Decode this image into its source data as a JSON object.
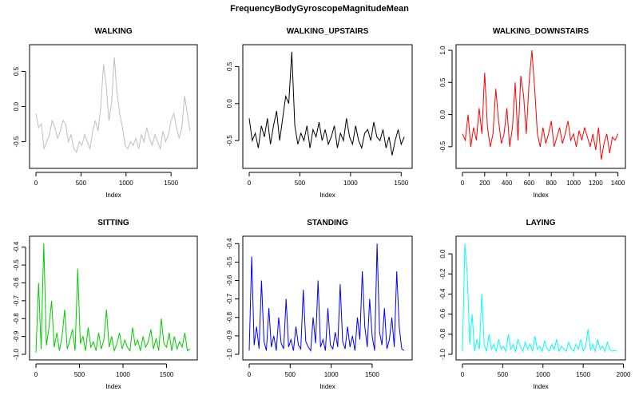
{
  "figure_title": "FrequencyBodyGyroscopeMagnitudeMean",
  "chart_data": [
    {
      "type": "line",
      "title": "WALKING",
      "xlabel": "Index",
      "ylabel": "",
      "color": "#bebebe",
      "n": 1720,
      "xlim": [
        0,
        1720
      ],
      "ylim": [
        -0.8,
        0.8
      ],
      "xticks": [
        0,
        500,
        1000,
        1500
      ],
      "yticks": [
        -0.5,
        0.0,
        0.5
      ],
      "xtick_labels": [
        "0",
        "500",
        "1000",
        "1500"
      ],
      "ytick_labels": [
        "-0.5",
        "0.0",
        "0.5"
      ],
      "x": [
        0,
        30,
        60,
        90,
        120,
        150,
        180,
        210,
        240,
        270,
        300,
        330,
        360,
        390,
        420,
        450,
        480,
        510,
        540,
        570,
        600,
        630,
        660,
        690,
        720,
        750,
        780,
        810,
        840,
        870,
        900,
        930,
        960,
        990,
        1020,
        1050,
        1080,
        1110,
        1140,
        1170,
        1200,
        1230,
        1260,
        1290,
        1320,
        1350,
        1380,
        1410,
        1440,
        1470,
        1500,
        1530,
        1560,
        1590,
        1620,
        1650,
        1680,
        1710
      ],
      "values": [
        -0.1,
        -0.3,
        -0.25,
        -0.6,
        -0.5,
        -0.4,
        -0.2,
        -0.3,
        -0.45,
        -0.35,
        -0.2,
        -0.25,
        -0.5,
        -0.4,
        -0.6,
        -0.65,
        -0.5,
        -0.55,
        -0.4,
        -0.5,
        -0.6,
        -0.35,
        -0.2,
        -0.35,
        0.0,
        0.6,
        0.3,
        -0.2,
        0.05,
        0.7,
        0.2,
        -0.1,
        -0.3,
        -0.55,
        -0.6,
        -0.5,
        -0.55,
        -0.45,
        -0.6,
        -0.4,
        -0.5,
        -0.3,
        -0.45,
        -0.55,
        -0.4,
        -0.5,
        -0.6,
        -0.35,
        -0.5,
        -0.4,
        -0.2,
        -0.1,
        -0.3,
        -0.45,
        -0.3,
        0.15,
        -0.1,
        -0.35
      ]
    },
    {
      "type": "line",
      "title": "WALKING_UPSTAIRS",
      "xlabel": "Index",
      "ylabel": "",
      "color": "#000000",
      "n": 1545,
      "xlim": [
        0,
        1545
      ],
      "ylim": [
        -0.8,
        0.72
      ],
      "xticks": [
        0,
        500,
        1000,
        1500
      ],
      "yticks": [
        -0.5,
        0.0,
        0.5
      ],
      "xtick_labels": [
        "0",
        "500",
        "1000",
        "1500"
      ],
      "ytick_labels": [
        "-0.5",
        "0.0",
        "0.5"
      ],
      "x": [
        0,
        30,
        60,
        90,
        120,
        150,
        180,
        210,
        240,
        270,
        300,
        330,
        360,
        390,
        420,
        450,
        480,
        510,
        540,
        570,
        600,
        630,
        660,
        690,
        720,
        750,
        780,
        810,
        840,
        870,
        900,
        930,
        960,
        990,
        1020,
        1050,
        1080,
        1110,
        1140,
        1170,
        1200,
        1230,
        1260,
        1290,
        1320,
        1350,
        1380,
        1410,
        1440,
        1470,
        1500,
        1530
      ],
      "values": [
        -0.2,
        -0.5,
        -0.4,
        -0.6,
        -0.3,
        -0.45,
        -0.2,
        -0.55,
        -0.3,
        -0.1,
        -0.5,
        -0.2,
        0.1,
        0.0,
        0.7,
        -0.3,
        -0.55,
        -0.4,
        -0.5,
        -0.3,
        -0.6,
        -0.35,
        -0.45,
        -0.25,
        -0.5,
        -0.35,
        -0.55,
        -0.45,
        -0.3,
        -0.6,
        -0.4,
        -0.5,
        -0.2,
        -0.45,
        -0.55,
        -0.3,
        -0.5,
        -0.6,
        -0.4,
        -0.35,
        -0.5,
        -0.25,
        -0.45,
        -0.5,
        -0.35,
        -0.6,
        -0.45,
        -0.7,
        -0.5,
        -0.35,
        -0.55,
        -0.45
      ]
    },
    {
      "type": "line",
      "title": "WALKING_DOWNSTAIRS",
      "xlabel": "Index",
      "ylabel": "",
      "color": "#ff0000",
      "n": 1410,
      "xlim": [
        0,
        1410
      ],
      "ylim": [
        -0.75,
        1.0
      ],
      "xticks": [
        0,
        200,
        400,
        600,
        800,
        1000,
        1200,
        1400
      ],
      "yticks": [
        -0.5,
        0.0,
        0.5,
        1.0
      ],
      "xtick_labels": [
        "0",
        "200",
        "400",
        "600",
        "800",
        "1000",
        "1200",
        "1400"
      ],
      "ytick_labels": [
        "-0.5",
        "0.0",
        "0.5",
        "1.0"
      ],
      "x": [
        0,
        25,
        50,
        75,
        100,
        125,
        150,
        175,
        200,
        225,
        250,
        275,
        300,
        325,
        350,
        375,
        400,
        425,
        450,
        475,
        500,
        525,
        550,
        575,
        600,
        625,
        650,
        675,
        700,
        725,
        750,
        775,
        800,
        825,
        850,
        875,
        900,
        925,
        950,
        975,
        1000,
        1025,
        1050,
        1075,
        1100,
        1125,
        1150,
        1175,
        1200,
        1225,
        1250,
        1275,
        1300,
        1325,
        1350,
        1375,
        1400
      ],
      "values": [
        -0.3,
        -0.4,
        0.0,
        -0.5,
        -0.2,
        -0.4,
        0.1,
        -0.3,
        0.65,
        -0.2,
        -0.5,
        -0.3,
        0.4,
        -0.1,
        -0.45,
        -0.3,
        0.1,
        -0.5,
        -0.2,
        0.5,
        -0.4,
        0.6,
        0.3,
        -0.3,
        0.5,
        1.0,
        0.4,
        -0.3,
        -0.5,
        -0.2,
        -0.45,
        -0.3,
        -0.1,
        -0.5,
        -0.35,
        -0.2,
        -0.45,
        -0.3,
        -0.1,
        -0.4,
        -0.3,
        -0.5,
        -0.25,
        -0.4,
        -0.2,
        -0.35,
        -0.5,
        -0.3,
        -0.55,
        -0.2,
        -0.7,
        -0.45,
        -0.3,
        -0.6,
        -0.35,
        -0.4,
        -0.3
      ]
    },
    {
      "type": "line",
      "title": "SITTING",
      "xlabel": "Index",
      "ylabel": "",
      "color": "#00cd00",
      "n": 1780,
      "xlim": [
        0,
        1780
      ],
      "ylim": [
        -1.0,
        -0.37
      ],
      "xticks": [
        0,
        500,
        1000,
        1500
      ],
      "yticks": [
        -1.0,
        -0.9,
        -0.8,
        -0.7,
        -0.6,
        -0.5,
        -0.4
      ],
      "xtick_labels": [
        "0",
        "500",
        "1000",
        "1500"
      ],
      "ytick_labels": [
        "-1.0",
        "-0.9",
        "-0.8",
        "-0.7",
        "-0.6",
        "-0.5",
        "-0.4"
      ],
      "x": [
        0,
        30,
        60,
        90,
        120,
        150,
        180,
        210,
        240,
        270,
        300,
        330,
        360,
        390,
        420,
        450,
        480,
        510,
        540,
        570,
        600,
        630,
        660,
        690,
        720,
        750,
        780,
        810,
        840,
        870,
        900,
        930,
        960,
        990,
        1020,
        1050,
        1080,
        1110,
        1140,
        1170,
        1200,
        1230,
        1260,
        1290,
        1320,
        1350,
        1380,
        1410,
        1440,
        1470,
        1500,
        1530,
        1560,
        1590,
        1620,
        1650,
        1680,
        1710,
        1740,
        1770
      ],
      "values": [
        -0.99,
        -0.6,
        -0.97,
        -0.38,
        -0.95,
        -0.85,
        -0.7,
        -0.96,
        -0.88,
        -0.98,
        -0.9,
        -0.75,
        -0.97,
        -0.92,
        -0.86,
        -0.98,
        -0.52,
        -0.94,
        -0.9,
        -0.98,
        -0.85,
        -0.96,
        -0.93,
        -0.98,
        -0.88,
        -0.97,
        -0.92,
        -0.75,
        -0.96,
        -0.9,
        -0.98,
        -0.94,
        -0.88,
        -0.97,
        -0.92,
        -0.96,
        -0.98,
        -0.85,
        -0.95,
        -0.92,
        -0.98,
        -0.9,
        -0.96,
        -0.93,
        -0.86,
        -0.97,
        -0.91,
        -0.98,
        -0.8,
        -0.94,
        -0.96,
        -0.88,
        -0.98,
        -0.9,
        -0.97,
        -0.93,
        -0.96,
        -0.88,
        -0.98,
        -0.97
      ]
    },
    {
      "type": "line",
      "title": "STANDING",
      "xlabel": "Index",
      "ylabel": "",
      "color": "#0000ff",
      "n": 1910,
      "xlim": [
        0,
        1910
      ],
      "ylim": [
        -1.0,
        -0.39
      ],
      "xticks": [
        0,
        500,
        1000,
        1500
      ],
      "yticks": [
        -1.0,
        -0.9,
        -0.8,
        -0.7,
        -0.6,
        -0.5,
        -0.4
      ],
      "xtick_labels": [
        "0",
        "500",
        "1000",
        "1500"
      ],
      "ytick_labels": [
        "-1.0",
        "-0.9",
        "-0.8",
        "-0.7",
        "-0.6",
        "-0.5",
        "-0.4"
      ],
      "x": [
        0,
        30,
        60,
        90,
        120,
        150,
        180,
        210,
        240,
        270,
        300,
        330,
        360,
        390,
        420,
        450,
        480,
        510,
        540,
        570,
        600,
        630,
        660,
        690,
        720,
        750,
        780,
        810,
        840,
        870,
        900,
        930,
        960,
        990,
        1020,
        1050,
        1080,
        1110,
        1140,
        1170,
        1200,
        1230,
        1260,
        1290,
        1320,
        1350,
        1380,
        1410,
        1440,
        1470,
        1500,
        1530,
        1560,
        1590,
        1620,
        1650,
        1680,
        1710,
        1740,
        1770,
        1800,
        1830,
        1860,
        1890
      ],
      "values": [
        -0.98,
        -0.47,
        -0.95,
        -0.85,
        -0.97,
        -0.6,
        -0.93,
        -0.98,
        -0.75,
        -0.96,
        -0.9,
        -0.98,
        -0.8,
        -0.94,
        -0.97,
        -0.7,
        -0.96,
        -0.92,
        -0.98,
        -0.85,
        -0.95,
        -0.97,
        -0.65,
        -0.93,
        -0.96,
        -0.98,
        -0.8,
        -0.94,
        -0.6,
        -0.96,
        -0.92,
        -0.98,
        -0.75,
        -0.95,
        -0.97,
        -0.88,
        -0.96,
        -0.62,
        -0.93,
        -0.97,
        -0.85,
        -0.96,
        -0.9,
        -0.98,
        -0.8,
        -0.92,
        -0.55,
        -0.85,
        -0.96,
        -0.7,
        -0.9,
        -0.98,
        -0.4,
        -0.88,
        -0.95,
        -0.75,
        -0.97,
        -0.92,
        -0.8,
        -0.96,
        -0.55,
        -0.85,
        -0.97,
        -0.98
      ]
    },
    {
      "type": "line",
      "title": "LAYING",
      "xlabel": "Index",
      "ylabel": "",
      "color": "#00ffff",
      "n": 1945,
      "xlim": [
        0,
        1945
      ],
      "ylim": [
        -1.0,
        0.12
      ],
      "xticks": [
        0,
        500,
        1000,
        1500,
        2000
      ],
      "yticks": [
        -1.0,
        -0.8,
        -0.6,
        -0.4,
        -0.2,
        0.0
      ],
      "xtick_labels": [
        "0",
        "500",
        "1000",
        "1500",
        "2000"
      ],
      "ytick_labels": [
        "-1.0",
        "-0.8",
        "-0.6",
        "-0.4",
        "-0.2",
        "0.0"
      ],
      "x": [
        0,
        30,
        60,
        90,
        120,
        150,
        180,
        210,
        240,
        270,
        300,
        330,
        360,
        390,
        420,
        450,
        480,
        510,
        540,
        570,
        600,
        630,
        660,
        690,
        720,
        750,
        780,
        810,
        840,
        870,
        900,
        930,
        960,
        990,
        1020,
        1050,
        1080,
        1110,
        1140,
        1170,
        1200,
        1230,
        1260,
        1290,
        1320,
        1350,
        1380,
        1410,
        1440,
        1470,
        1500,
        1530,
        1560,
        1590,
        1620,
        1650,
        1680,
        1710,
        1740,
        1770,
        1800,
        1830,
        1860,
        1890,
        1920
      ],
      "values": [
        -0.97,
        0.1,
        -0.2,
        -0.9,
        -0.6,
        -0.97,
        -0.85,
        -0.95,
        -0.4,
        -0.9,
        -0.97,
        -0.8,
        -0.95,
        -0.9,
        -0.97,
        -0.85,
        -0.95,
        -0.92,
        -0.97,
        -0.8,
        -0.95,
        -0.9,
        -0.97,
        -0.85,
        -0.93,
        -0.97,
        -0.88,
        -0.95,
        -0.9,
        -0.97,
        -0.82,
        -0.95,
        -0.92,
        -0.97,
        -0.87,
        -0.94,
        -0.97,
        -0.9,
        -0.95,
        -0.85,
        -0.97,
        -0.92,
        -0.95,
        -0.97,
        -0.88,
        -0.94,
        -0.97,
        -0.9,
        -0.95,
        -0.85,
        -0.97,
        -0.92,
        -0.75,
        -0.96,
        -0.9,
        -0.97,
        -0.85,
        -0.95,
        -0.92,
        -0.97,
        -0.88,
        -0.95,
        -0.97,
        -0.96,
        -0.97
      ]
    }
  ]
}
